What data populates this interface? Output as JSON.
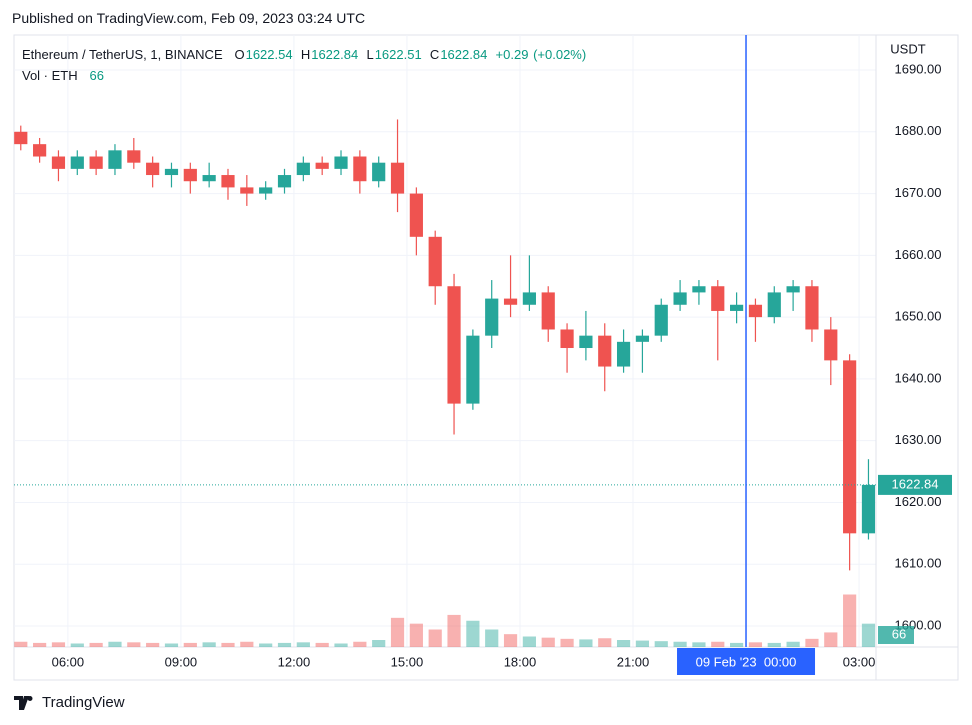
{
  "header": {
    "published": "Published on TradingView.com, Feb 09, 2023 03:24 UTC"
  },
  "chart_data": {
    "type": "candlestick",
    "legend": {
      "symbol": "Ethereum / TetherUS, 1, BINANCE",
      "o_label": "O",
      "open": 1622.54,
      "h_label": "H",
      "high": 1622.84,
      "l_label": "L",
      "low": 1622.51,
      "c_label": "C",
      "close": 1622.84,
      "change": {
        "value": 0.29,
        "label": "+0.29"
      },
      "change_pct": {
        "value": 0.02,
        "label": "(+0.02%)"
      },
      "volume_label": "Vol · ETH",
      "volume": 66
    },
    "currency": "USDT",
    "up_color": "#26a69a",
    "down_color": "#ef5350",
    "x": [
      4.75,
      5.25,
      5.75,
      6.25,
      6.75,
      7.25,
      7.75,
      8.25,
      8.75,
      9.25,
      9.75,
      10.25,
      10.75,
      11.25,
      11.75,
      12.25,
      12.75,
      13.25,
      13.75,
      14.25,
      14.75,
      15.25,
      15.75,
      16.25,
      16.75,
      17.25,
      17.75,
      18.25,
      18.75,
      19.25,
      19.75,
      20.25,
      20.75,
      21.25,
      21.75,
      22.25,
      22.75,
      23.25,
      23.75,
      24.25,
      24.75,
      25.25,
      25.75,
      26.25,
      26.75,
      27.25
    ],
    "open": [
      1680,
      1678,
      1676,
      1674,
      1676,
      1674,
      1677,
      1675,
      1673,
      1674,
      1672,
      1673,
      1671,
      1670,
      1671,
      1673,
      1675,
      1674,
      1676,
      1672,
      1675,
      1670,
      1663,
      1655,
      1636,
      1647,
      1653,
      1652,
      1654,
      1648,
      1645,
      1647,
      1642,
      1646,
      1647,
      1652,
      1654,
      1655,
      1651,
      1652,
      1650,
      1654,
      1655,
      1648,
      1643,
      1615
    ],
    "high": [
      1681,
      1679,
      1677,
      1677,
      1677,
      1678,
      1679,
      1676,
      1675,
      1675,
      1675,
      1674,
      1673,
      1672,
      1674,
      1676,
      1676,
      1677,
      1677,
      1676,
      1682,
      1671,
      1664,
      1657,
      1648,
      1656,
      1660,
      1660,
      1655,
      1649,
      1651,
      1649,
      1648,
      1648,
      1653,
      1656,
      1656,
      1656,
      1654,
      1653,
      1655,
      1656,
      1656,
      1650,
      1644,
      1627
    ],
    "low": [
      1677,
      1675,
      1672,
      1673,
      1673,
      1673,
      1674,
      1671,
      1671,
      1670,
      1671,
      1669,
      1668,
      1669,
      1670,
      1672,
      1673,
      1673,
      1670,
      1671,
      1667,
      1660,
      1652,
      1631,
      1635,
      1645,
      1650,
      1651,
      1646,
      1641,
      1643,
      1638,
      1641,
      1641,
      1646,
      1651,
      1652,
      1643,
      1649,
      1646,
      1649,
      1651,
      1646,
      1639,
      1609,
      1614
    ],
    "close": [
      1678,
      1676,
      1674,
      1676,
      1674,
      1677,
      1675,
      1673,
      1674,
      1672,
      1673,
      1671,
      1670,
      1671,
      1673,
      1675,
      1674,
      1676,
      1672,
      1675,
      1670,
      1663,
      1655,
      1636,
      1647,
      1653,
      1652,
      1654,
      1648,
      1645,
      1647,
      1642,
      1646,
      1647,
      1652,
      1654,
      1655,
      1651,
      1652,
      1650,
      1654,
      1655,
      1648,
      1643,
      1615,
      1622.84
    ],
    "volume": [
      900,
      700,
      800,
      600,
      700,
      900,
      800,
      700,
      600,
      700,
      800,
      700,
      900,
      600,
      700,
      800,
      700,
      600,
      900,
      1200,
      5000,
      4000,
      3000,
      5500,
      4500,
      3000,
      2200,
      1800,
      1600,
      1400,
      1300,
      1500,
      1200,
      1100,
      1000,
      900,
      800,
      900,
      700,
      800,
      700,
      900,
      1400,
      2500,
      9000,
      4000
    ],
    "vol_ylim": [
      0,
      12000
    ],
    "xlim": [
      4.57,
      27.45
    ],
    "xticks": [
      {
        "value": 6,
        "label": "06:00"
      },
      {
        "value": 9,
        "label": "09:00"
      },
      {
        "value": 12,
        "label": "12:00"
      },
      {
        "value": 15,
        "label": "15:00"
      },
      {
        "value": 18,
        "label": "18:00"
      },
      {
        "value": 21,
        "label": "21:00"
      },
      {
        "value": 27,
        "label": "03:00"
      }
    ],
    "ylim": [
      1596.6,
      1695.67
    ],
    "yticks": [
      {
        "value": 1600,
        "label": "1600.00"
      },
      {
        "value": 1610,
        "label": "1610.00"
      },
      {
        "value": 1620,
        "label": "1620.00"
      },
      {
        "value": 1630,
        "label": "1630.00"
      },
      {
        "value": 1640,
        "label": "1640.00"
      },
      {
        "value": 1650,
        "label": "1650.00"
      },
      {
        "value": 1660,
        "label": "1660.00"
      },
      {
        "value": 1670,
        "label": "1670.00"
      },
      {
        "value": 1680,
        "label": "1680.00"
      },
      {
        "value": 1690,
        "label": "1690.00"
      }
    ],
    "grid": true,
    "last_price": 1622.84,
    "last_volume": 66,
    "crosshair": {
      "value": 24,
      "label": "09 Feb '23  00:00"
    }
  },
  "footer": {
    "brand": "TradingView"
  }
}
